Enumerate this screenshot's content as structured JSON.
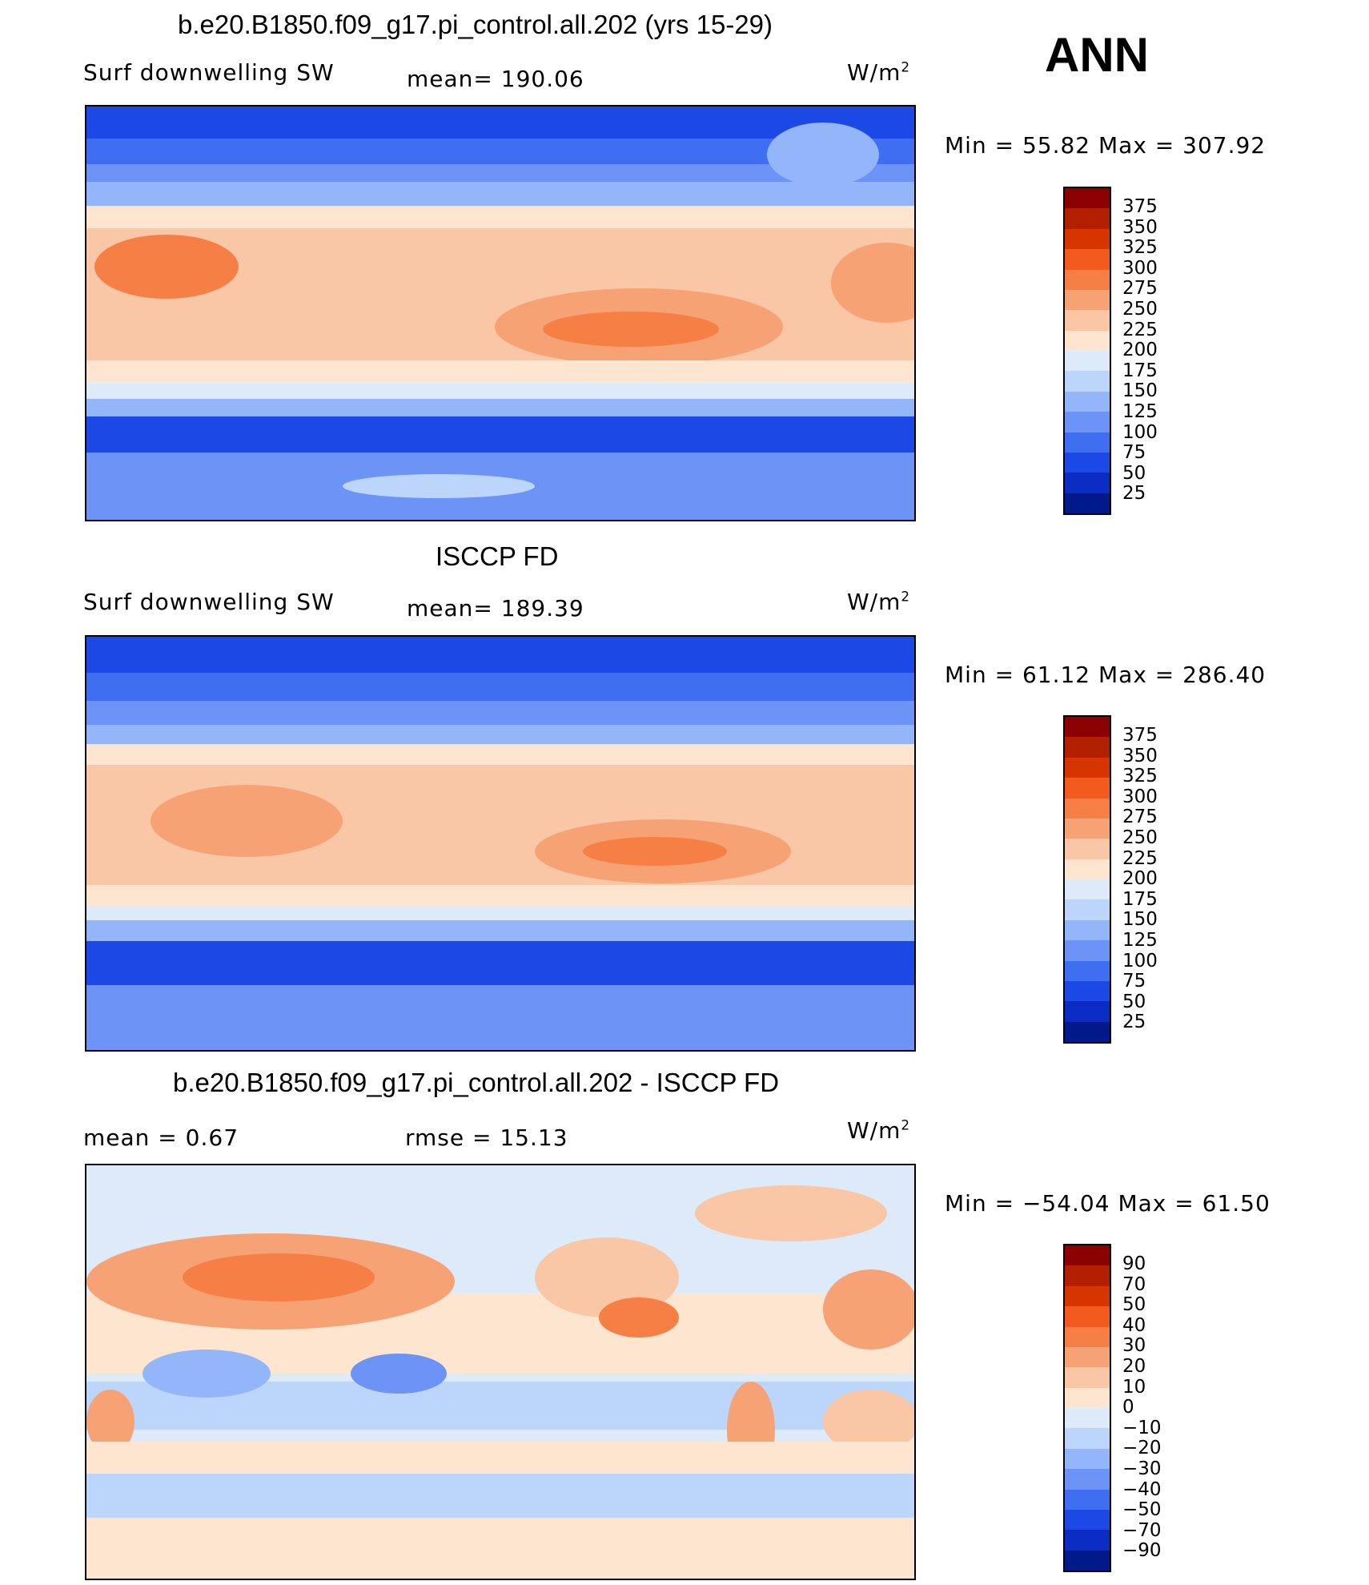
{
  "season_label": "ANN",
  "units_prefix": "W/m",
  "units_sup": "2",
  "panel_top": {
    "title": "b.e20.B1850.f09_g17.pi_control.all.202 (yrs 15-29)",
    "variable": "Surf  downwelling  SW",
    "mean_label": "mean=  190.06",
    "minmax": "Min  =     55.82  Max  =  307.92"
  },
  "panel_mid": {
    "title": "ISCCP FD",
    "variable": "Surf  downwelling  SW",
    "mean_label": "mean=  189.39",
    "minmax": "Min  =     61.12  Max  =  286.40"
  },
  "panel_diff": {
    "title": "b.e20.B1850.f09_g17.pi_control.all.202 - ISCCP FD",
    "mean_label": "mean  =       0.67",
    "rmse_label": "rmse  =      15.13",
    "minmax": "Min  =  −54.04  Max  =     61.50"
  },
  "chart_data": [
    {
      "type": "heatmap",
      "title": "b.e20.B1850.f09_g17.pi_control.all.202 (yrs 15-29)",
      "variable": "Surf downwelling SW",
      "units": "W/m2",
      "mean": 190.06,
      "min": 55.82,
      "max": 307.92,
      "colorbar_levels": [
        375,
        350,
        325,
        300,
        275,
        250,
        225,
        200,
        175,
        150,
        125,
        100,
        75,
        50,
        25
      ]
    },
    {
      "type": "heatmap",
      "title": "ISCCP FD",
      "variable": "Surf downwelling SW",
      "units": "W/m2",
      "mean": 189.39,
      "min": 61.12,
      "max": 286.4,
      "colorbar_levels": [
        375,
        350,
        325,
        300,
        275,
        250,
        225,
        200,
        175,
        150,
        125,
        100,
        75,
        50,
        25
      ]
    },
    {
      "type": "heatmap",
      "title": "b.e20.B1850.f09_g17.pi_control.all.202 - ISCCP FD",
      "units": "W/m2",
      "mean": 0.67,
      "rmse": 15.13,
      "min": -54.04,
      "max": 61.5,
      "colorbar_levels": [
        90,
        70,
        50,
        40,
        30,
        20,
        10,
        0,
        -10,
        -20,
        -30,
        -40,
        -50,
        -70,
        -90
      ]
    }
  ],
  "colorbar_labels_abs": [
    "375",
    "350",
    "325",
    "300",
    "275",
    "250",
    "225",
    "200",
    "175",
    "150",
    "125",
    "100",
    "75",
    "50",
    "25"
  ],
  "colorbar_labels_diff": [
    "90",
    "70",
    "50",
    "40",
    "30",
    "20",
    "10",
    "0",
    "−10",
    "−20",
    "−30",
    "−40",
    "−50",
    "−70",
    "−90"
  ],
  "colorbar_colors": [
    "#8b0000",
    "#b22000",
    "#d63500",
    "#f25a1e",
    "#f57f45",
    "#f7a275",
    "#f9c6a6",
    "#fde5d0",
    "#dceaf9",
    "#bcd5fb",
    "#93b6fb",
    "#6c93f6",
    "#3f6ef0",
    "#1c49e6",
    "#0a2cc2",
    "#001a8c"
  ]
}
